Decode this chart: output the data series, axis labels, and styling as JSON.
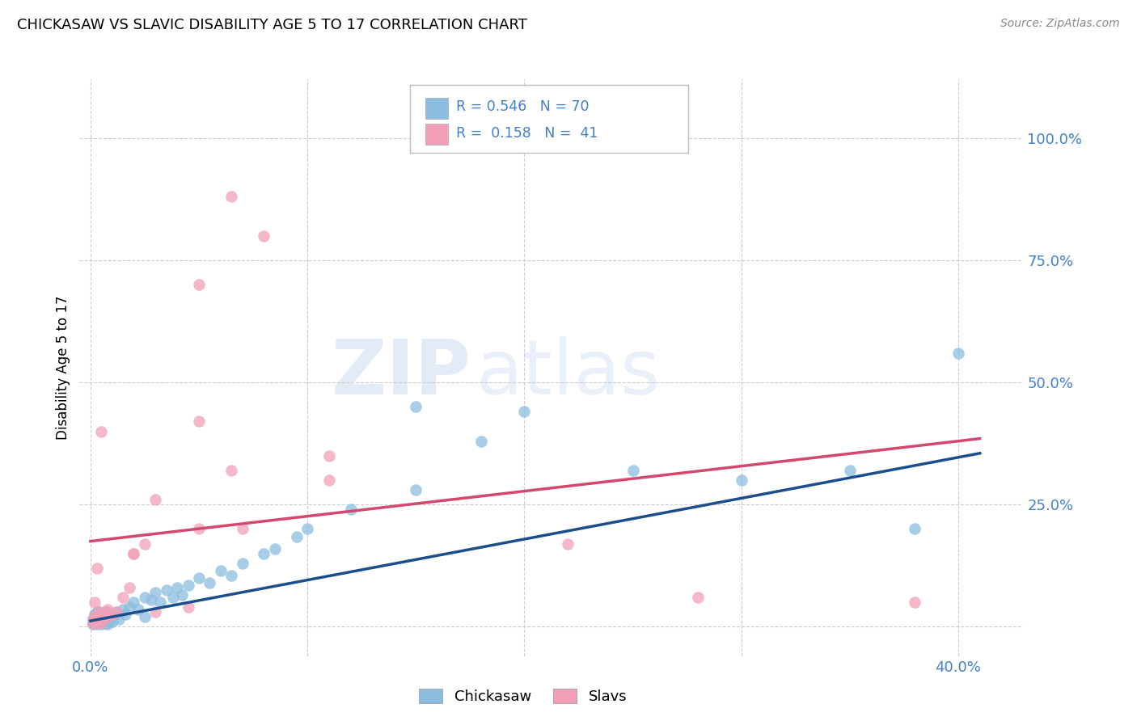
{
  "title": "CHICKASAW VS SLAVIC DISABILITY AGE 5 TO 17 CORRELATION CHART",
  "source": "Source: ZipAtlas.com",
  "ylabel_label": "Disability Age 5 to 17",
  "chickasaw_R": "0.546",
  "chickasaw_N": "70",
  "slavic_R": "0.158",
  "slavic_N": "41",
  "chickasaw_color": "#8BBDE0",
  "slavic_color": "#F2A0B8",
  "trendline_chickasaw_color": "#1A4E8C",
  "trendline_slavic_color": "#D44870",
  "legend_label_chickasaw": "Chickasaw",
  "legend_label_slavic": "Slavs",
  "tick_color": "#4080CC",
  "xlim": [
    -0.005,
    0.43
  ],
  "ylim": [
    -0.06,
    1.12
  ],
  "x_ticks": [
    0.0,
    0.1,
    0.2,
    0.3,
    0.4
  ],
  "y_ticks": [
    0.0,
    0.25,
    0.5,
    0.75,
    1.0
  ],
  "grid_color": "#CCCCCC",
  "watermark_color": "#C8D8F0",
  "trendline_chick_x0": 0.0,
  "trendline_chick_y0": 0.012,
  "trendline_chick_x1": 0.41,
  "trendline_chick_y1": 0.355,
  "trendline_slav_x0": 0.0,
  "trendline_slav_y0": 0.175,
  "trendline_slav_x1": 0.41,
  "trendline_slav_y1": 0.385,
  "chickasaw_x": [
    0.001,
    0.001,
    0.001,
    0.002,
    0.002,
    0.002,
    0.002,
    0.003,
    0.003,
    0.003,
    0.003,
    0.003,
    0.004,
    0.004,
    0.004,
    0.004,
    0.005,
    0.005,
    0.005,
    0.005,
    0.006,
    0.006,
    0.006,
    0.007,
    0.007,
    0.007,
    0.008,
    0.008,
    0.008,
    0.009,
    0.009,
    0.01,
    0.01,
    0.011,
    0.012,
    0.013,
    0.015,
    0.016,
    0.018,
    0.02,
    0.022,
    0.025,
    0.025,
    0.028,
    0.03,
    0.032,
    0.035,
    0.038,
    0.04,
    0.042,
    0.045,
    0.05,
    0.055,
    0.06,
    0.065,
    0.07,
    0.08,
    0.085,
    0.095,
    0.1,
    0.12,
    0.15,
    0.2,
    0.25,
    0.3,
    0.35,
    0.38,
    0.4,
    0.15,
    0.18
  ],
  "chickasaw_y": [
    0.005,
    0.01,
    0.015,
    0.008,
    0.015,
    0.02,
    0.025,
    0.01,
    0.018,
    0.025,
    0.03,
    0.005,
    0.015,
    0.022,
    0.03,
    0.008,
    0.012,
    0.02,
    0.028,
    0.005,
    0.018,
    0.025,
    0.01,
    0.02,
    0.03,
    0.008,
    0.025,
    0.015,
    0.005,
    0.022,
    0.012,
    0.02,
    0.01,
    0.025,
    0.03,
    0.015,
    0.035,
    0.025,
    0.04,
    0.05,
    0.035,
    0.06,
    0.02,
    0.055,
    0.07,
    0.05,
    0.075,
    0.06,
    0.08,
    0.065,
    0.085,
    0.1,
    0.09,
    0.115,
    0.105,
    0.13,
    0.15,
    0.16,
    0.185,
    0.2,
    0.24,
    0.28,
    0.44,
    0.32,
    0.3,
    0.32,
    0.2,
    0.56,
    0.45,
    0.38
  ],
  "slavic_x": [
    0.001,
    0.001,
    0.002,
    0.002,
    0.003,
    0.003,
    0.004,
    0.004,
    0.005,
    0.005,
    0.006,
    0.006,
    0.007,
    0.008,
    0.008,
    0.009,
    0.01,
    0.012,
    0.015,
    0.018,
    0.02,
    0.025,
    0.03,
    0.05,
    0.07,
    0.11,
    0.22,
    0.05,
    0.065,
    0.08,
    0.05,
    0.065,
    0.11,
    0.28,
    0.38,
    0.03,
    0.045,
    0.02,
    0.005,
    0.003,
    0.002
  ],
  "slavic_y": [
    0.005,
    0.015,
    0.012,
    0.02,
    0.01,
    0.025,
    0.015,
    0.03,
    0.02,
    0.008,
    0.025,
    0.015,
    0.03,
    0.02,
    0.035,
    0.025,
    0.025,
    0.03,
    0.06,
    0.08,
    0.15,
    0.17,
    0.26,
    0.2,
    0.2,
    0.3,
    0.17,
    0.42,
    0.88,
    0.8,
    0.7,
    0.32,
    0.35,
    0.06,
    0.05,
    0.03,
    0.04,
    0.15,
    0.4,
    0.12,
    0.05
  ]
}
